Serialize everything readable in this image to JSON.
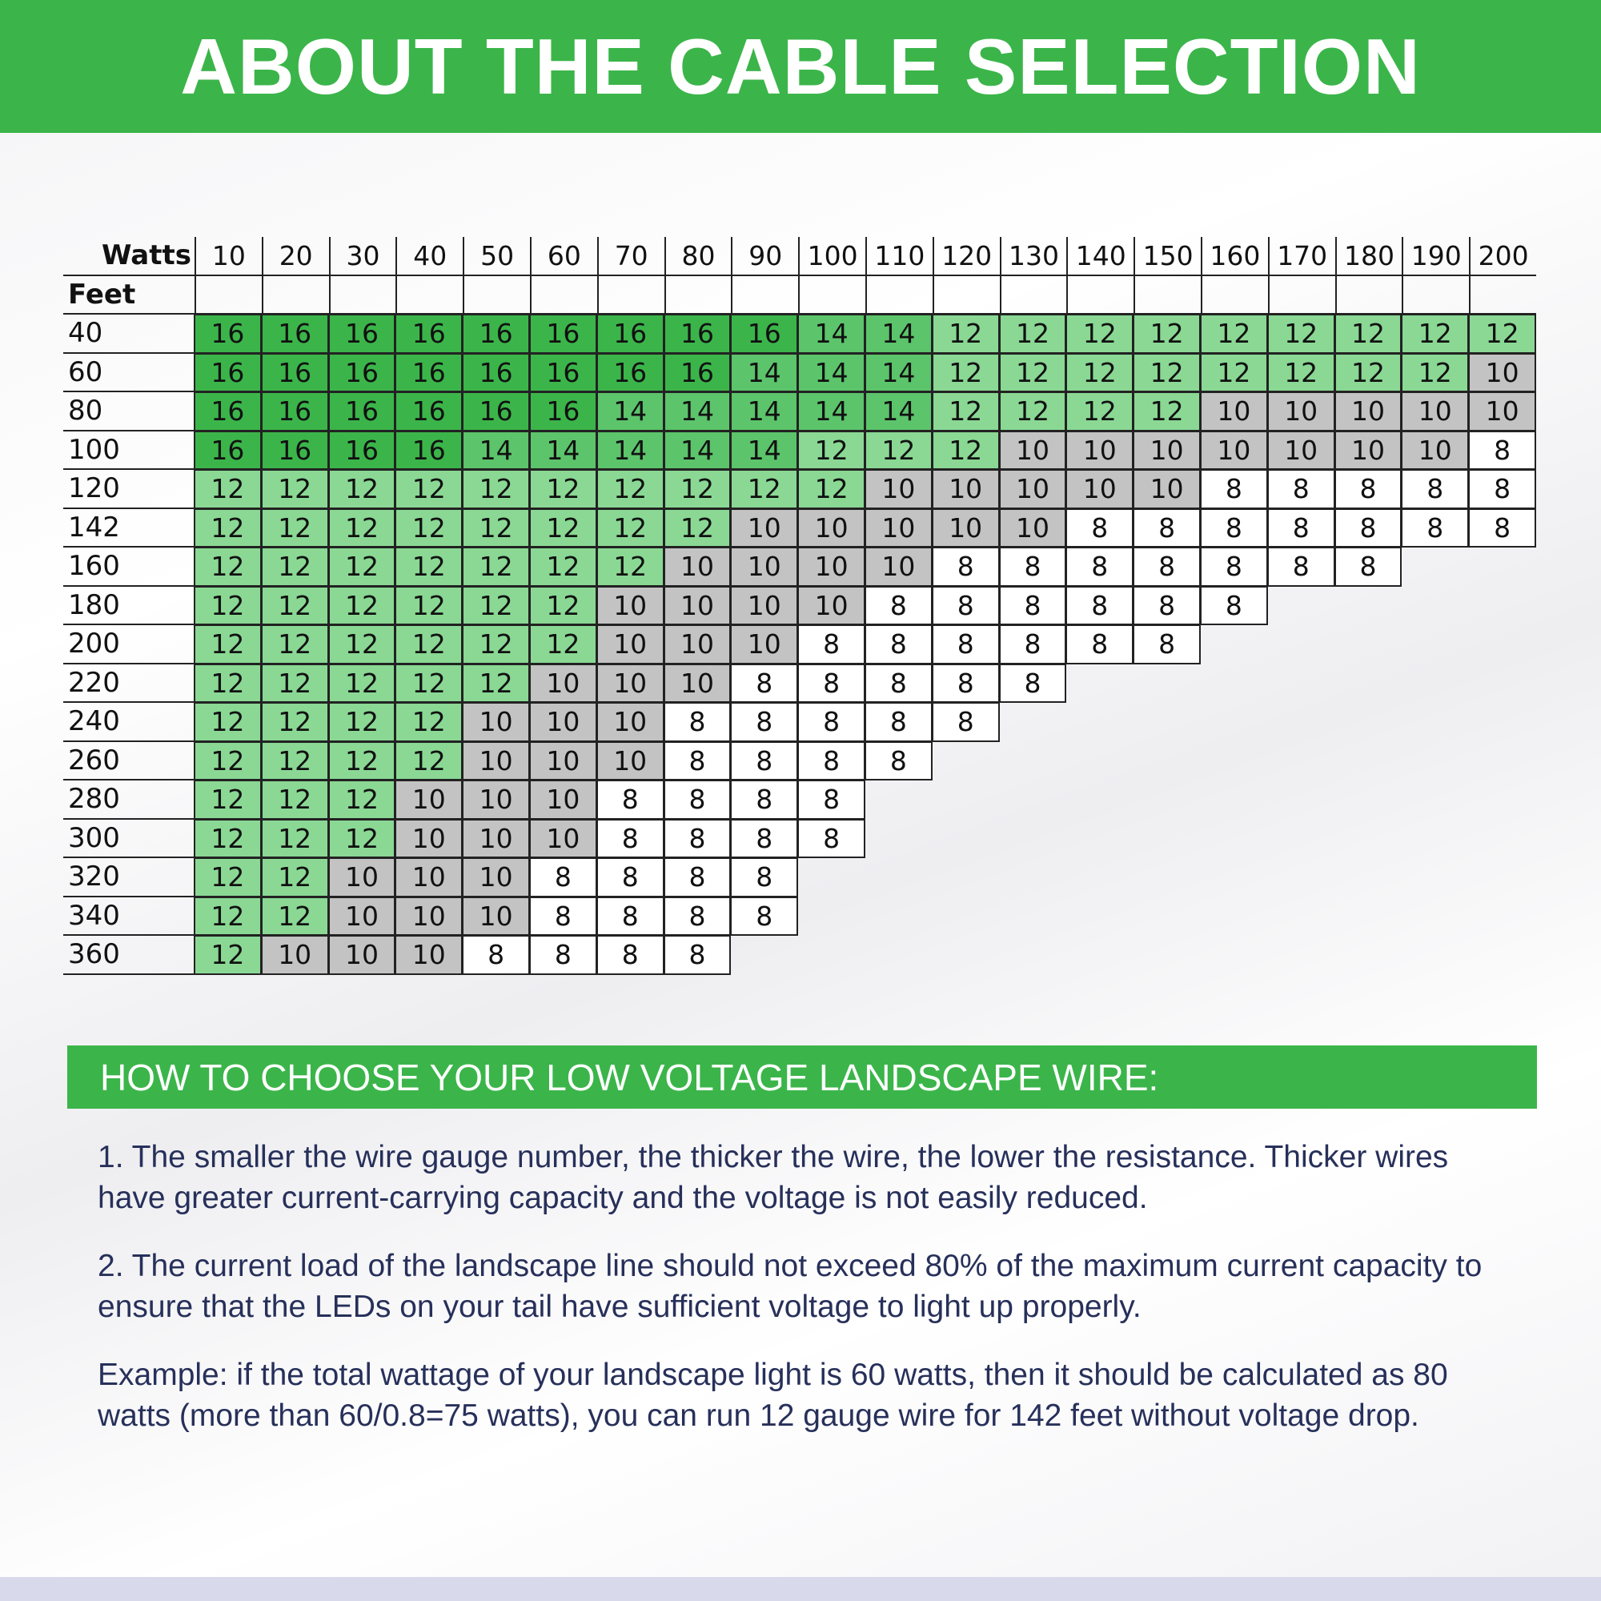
{
  "header": {
    "title": "ABOUT THE CABLE SELECTION"
  },
  "table": {
    "corner": "Watts",
    "feet_label": "Feet",
    "watts": [
      "10",
      "20",
      "30",
      "40",
      "50",
      "60",
      "70",
      "80",
      "90",
      "100",
      "110",
      "120",
      "130",
      "140",
      "150",
      "160",
      "170",
      "180",
      "190",
      "200"
    ],
    "rows": [
      {
        "feet": "40",
        "gauges": [
          "16",
          "16",
          "16",
          "16",
          "16",
          "16",
          "16",
          "16",
          "16",
          "14",
          "14",
          "12",
          "12",
          "12",
          "12",
          "12",
          "12",
          "12",
          "12",
          "12"
        ]
      },
      {
        "feet": "60",
        "gauges": [
          "16",
          "16",
          "16",
          "16",
          "16",
          "16",
          "16",
          "16",
          "14",
          "14",
          "14",
          "12",
          "12",
          "12",
          "12",
          "12",
          "12",
          "12",
          "12",
          "10"
        ]
      },
      {
        "feet": "80",
        "gauges": [
          "16",
          "16",
          "16",
          "16",
          "16",
          "16",
          "14",
          "14",
          "14",
          "14",
          "14",
          "12",
          "12",
          "12",
          "12",
          "10",
          "10",
          "10",
          "10",
          "10"
        ]
      },
      {
        "feet": "100",
        "gauges": [
          "16",
          "16",
          "16",
          "16",
          "14",
          "14",
          "14",
          "14",
          "14",
          "12",
          "12",
          "12",
          "10",
          "10",
          "10",
          "10",
          "10",
          "10",
          "10",
          "8"
        ]
      },
      {
        "feet": "120",
        "gauges": [
          "12",
          "12",
          "12",
          "12",
          "12",
          "12",
          "12",
          "12",
          "12",
          "12",
          "10",
          "10",
          "10",
          "10",
          "10",
          "8",
          "8",
          "8",
          "8",
          "8"
        ]
      },
      {
        "feet": "142",
        "gauges": [
          "12",
          "12",
          "12",
          "12",
          "12",
          "12",
          "12",
          "12",
          "10",
          "10",
          "10",
          "10",
          "10",
          "8",
          "8",
          "8",
          "8",
          "8",
          "8",
          "8"
        ]
      },
      {
        "feet": "160",
        "gauges": [
          "12",
          "12",
          "12",
          "12",
          "12",
          "12",
          "12",
          "10",
          "10",
          "10",
          "10",
          "8",
          "8",
          "8",
          "8",
          "8",
          "8",
          "8"
        ]
      },
      {
        "feet": "180",
        "gauges": [
          "12",
          "12",
          "12",
          "12",
          "12",
          "12",
          "10",
          "10",
          "10",
          "10",
          "8",
          "8",
          "8",
          "8",
          "8",
          "8"
        ]
      },
      {
        "feet": "200",
        "gauges": [
          "12",
          "12",
          "12",
          "12",
          "12",
          "12",
          "10",
          "10",
          "10",
          "8",
          "8",
          "8",
          "8",
          "8",
          "8"
        ]
      },
      {
        "feet": "220",
        "gauges": [
          "12",
          "12",
          "12",
          "12",
          "12",
          "10",
          "10",
          "10",
          "8",
          "8",
          "8",
          "8",
          "8"
        ]
      },
      {
        "feet": "240",
        "gauges": [
          "12",
          "12",
          "12",
          "12",
          "10",
          "10",
          "10",
          "8",
          "8",
          "8",
          "8",
          "8"
        ]
      },
      {
        "feet": "260",
        "gauges": [
          "12",
          "12",
          "12",
          "12",
          "10",
          "10",
          "10",
          "8",
          "8",
          "8",
          "8"
        ]
      },
      {
        "feet": "280",
        "gauges": [
          "12",
          "12",
          "12",
          "10",
          "10",
          "10",
          "8",
          "8",
          "8",
          "8"
        ]
      },
      {
        "feet": "300",
        "gauges": [
          "12",
          "12",
          "12",
          "10",
          "10",
          "10",
          "8",
          "8",
          "8",
          "8"
        ]
      },
      {
        "feet": "320",
        "gauges": [
          "12",
          "12",
          "10",
          "10",
          "10",
          "8",
          "8",
          "8",
          "8"
        ]
      },
      {
        "feet": "340",
        "gauges": [
          "12",
          "12",
          "10",
          "10",
          "10",
          "8",
          "8",
          "8",
          "8"
        ]
      },
      {
        "feet": "360",
        "gauges": [
          "12",
          "10",
          "10",
          "10",
          "8",
          "8",
          "8",
          "8"
        ]
      }
    ]
  },
  "guide": {
    "title": "HOW TO CHOOSE YOUR LOW VOLTAGE LANDSCAPE WIRE:",
    "paragraphs": [
      "1. The smaller the wire gauge number, the thicker the wire, the lower the resistance. Thicker wires have greater current-carrying capacity and the voltage is not easily reduced.",
      "2. The current load of the landscape line should not exceed 80% of the maximum current capacity to ensure that the LEDs on your tail have sufficient voltage to light up properly.",
      "Example: if the total wattage of your landscape light is 60 watts, then it should be calculated as 80 watts (more than 60/0.8=75 watts), you can run 12 gauge wire for 142 feet without voltage drop."
    ]
  }
}
